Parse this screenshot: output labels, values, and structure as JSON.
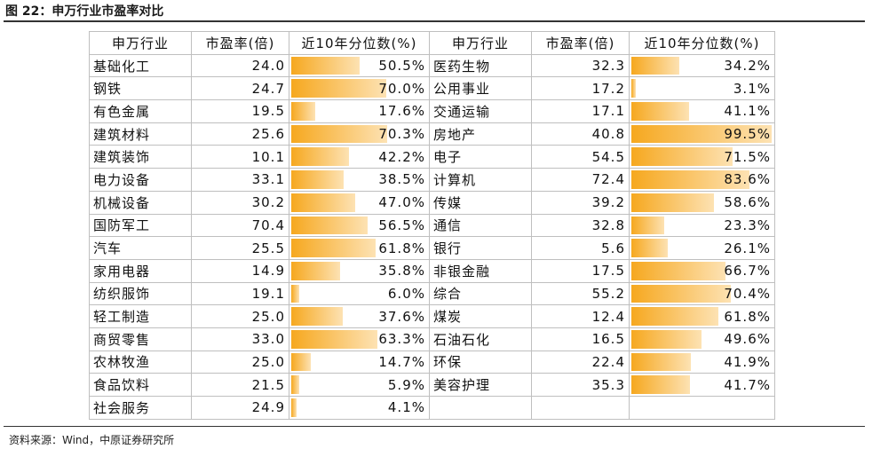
{
  "title": "图 22：申万行业市盈率对比",
  "table": {
    "header": [
      "申万行业",
      "市盈率(倍)",
      "近10年分位数(%)",
      "申万行业",
      "市盈率(倍)",
      "近10年分位数(%)"
    ],
    "left": [
      {
        "name": "基础化工",
        "pe": "24.0",
        "pct": {
          "value": 50.5,
          "label": "50.5%"
        }
      },
      {
        "name": "钢铁",
        "pe": "24.7",
        "pct": {
          "value": 70.0,
          "label": "70.0%"
        }
      },
      {
        "name": "有色金属",
        "pe": "19.5",
        "pct": {
          "value": 17.6,
          "label": "17.6%"
        }
      },
      {
        "name": "建筑材料",
        "pe": "25.6",
        "pct": {
          "value": 70.3,
          "label": "70.3%"
        }
      },
      {
        "name": "建筑装饰",
        "pe": "10.1",
        "pct": {
          "value": 42.2,
          "label": "42.2%"
        }
      },
      {
        "name": "电力设备",
        "pe": "33.1",
        "pct": {
          "value": 38.5,
          "label": "38.5%"
        }
      },
      {
        "name": "机械设备",
        "pe": "30.2",
        "pct": {
          "value": 47.0,
          "label": "47.0%"
        }
      },
      {
        "name": "国防军工",
        "pe": "70.4",
        "pct": {
          "value": 56.5,
          "label": "56.5%"
        }
      },
      {
        "name": "汽车",
        "pe": "25.5",
        "pct": {
          "value": 61.8,
          "label": "61.8%"
        }
      },
      {
        "name": "家用电器",
        "pe": "14.9",
        "pct": {
          "value": 35.8,
          "label": "35.8%"
        }
      },
      {
        "name": "纺织服饰",
        "pe": "19.1",
        "pct": {
          "value": 6.0,
          "label": "6.0%"
        }
      },
      {
        "name": "轻工制造",
        "pe": "25.0",
        "pct": {
          "value": 37.6,
          "label": "37.6%"
        }
      },
      {
        "name": "商贸零售",
        "pe": "33.0",
        "pct": {
          "value": 63.3,
          "label": "63.3%"
        }
      },
      {
        "name": "农林牧渔",
        "pe": "25.0",
        "pct": {
          "value": 14.7,
          "label": "14.7%"
        }
      },
      {
        "name": "食品饮料",
        "pe": "21.5",
        "pct": {
          "value": 5.9,
          "label": "5.9%"
        }
      },
      {
        "name": "社会服务",
        "pe": "24.9",
        "pct": {
          "value": 4.1,
          "label": "4.1%"
        }
      }
    ],
    "right": [
      {
        "name": "医药生物",
        "pe": "32.3",
        "pct": {
          "value": 34.2,
          "label": "34.2%"
        }
      },
      {
        "name": "公用事业",
        "pe": "17.2",
        "pct": {
          "value": 3.1,
          "label": "3.1%"
        }
      },
      {
        "name": "交通运输",
        "pe": "17.1",
        "pct": {
          "value": 41.1,
          "label": "41.1%"
        }
      },
      {
        "name": "房地产",
        "pe": "40.8",
        "pct": {
          "value": 99.5,
          "label": "99.5%"
        }
      },
      {
        "name": "电子",
        "pe": "54.5",
        "pct": {
          "value": 71.5,
          "label": "71.5%"
        }
      },
      {
        "name": "计算机",
        "pe": "72.4",
        "pct": {
          "value": 83.6,
          "label": "83.6%"
        }
      },
      {
        "name": "传媒",
        "pe": "39.2",
        "pct": {
          "value": 58.6,
          "label": "58.6%"
        }
      },
      {
        "name": "通信",
        "pe": "32.8",
        "pct": {
          "value": 23.3,
          "label": "23.3%"
        }
      },
      {
        "name": "银行",
        "pe": "5.6",
        "pct": {
          "value": 26.1,
          "label": "26.1%"
        }
      },
      {
        "name": "非银金融",
        "pe": "17.5",
        "pct": {
          "value": 66.7,
          "label": "66.7%"
        }
      },
      {
        "name": "综合",
        "pe": "55.2",
        "pct": {
          "value": 70.4,
          "label": "70.4%"
        }
      },
      {
        "name": "煤炭",
        "pe": "12.4",
        "pct": {
          "value": 61.8,
          "label": "61.8%"
        }
      },
      {
        "name": "石油石化",
        "pe": "16.5",
        "pct": {
          "value": 49.6,
          "label": "49.6%"
        }
      },
      {
        "name": "环保",
        "pe": "22.4",
        "pct": {
          "value": 41.9,
          "label": "41.9%"
        }
      },
      {
        "name": "美容护理",
        "pe": "35.3",
        "pct": {
          "value": 41.7,
          "label": "41.7%"
        }
      }
    ]
  },
  "source": "资料来源：Wind，中原证券研究所"
}
